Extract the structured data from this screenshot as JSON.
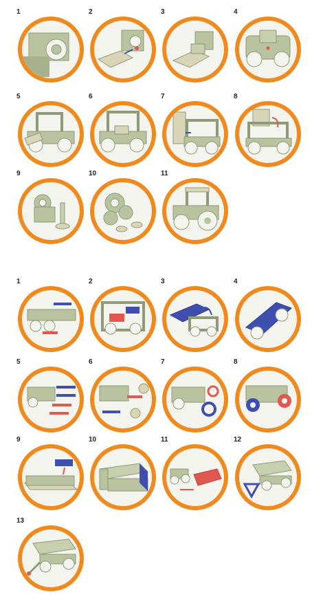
{
  "colors": {
    "ring": "#ef8a1f",
    "part": "#b9c3a0",
    "part_dark": "#8f9a78",
    "blue": "#3f4fb0",
    "red": "#e0584f",
    "background": "#ffffff"
  },
  "tractor": {
    "steps": [
      {
        "label": "1",
        "icon": "tractor-step-1-panel"
      },
      {
        "label": "2",
        "icon": "tractor-step-2-floor"
      },
      {
        "label": "3",
        "icon": "tractor-step-3-seat"
      },
      {
        "label": "4",
        "icon": "tractor-step-4-frame"
      },
      {
        "label": "5",
        "icon": "tractor-step-5-cab"
      },
      {
        "label": "6",
        "icon": "tractor-step-6-cab"
      },
      {
        "label": "7",
        "icon": "tractor-step-7-roof"
      },
      {
        "label": "8",
        "icon": "tractor-step-8-roof"
      },
      {
        "label": "9",
        "icon": "tractor-step-9-axle"
      },
      {
        "label": "10",
        "icon": "tractor-step-10-wheels"
      },
      {
        "label": "11",
        "icon": "tractor-step-11-complete"
      }
    ]
  },
  "trailer": {
    "steps": [
      {
        "label": "1",
        "icon": "trailer-step-1-sides"
      },
      {
        "label": "2",
        "icon": "trailer-step-2-frame"
      },
      {
        "label": "3",
        "icon": "trailer-step-3-deck"
      },
      {
        "label": "4",
        "icon": "trailer-step-4-deck"
      },
      {
        "label": "5",
        "icon": "trailer-step-5-pins"
      },
      {
        "label": "6",
        "icon": "trailer-step-6-washers"
      },
      {
        "label": "7",
        "icon": "trailer-step-7-washer"
      },
      {
        "label": "8",
        "icon": "trailer-step-8-wheels"
      },
      {
        "label": "9",
        "icon": "trailer-step-9-box"
      },
      {
        "label": "10",
        "icon": "trailer-step-10-box"
      },
      {
        "label": "11",
        "icon": "trailer-step-11-attach"
      },
      {
        "label": "12",
        "icon": "trailer-step-12-drawbar"
      },
      {
        "label": "13",
        "icon": "trailer-step-13-complete"
      }
    ]
  }
}
